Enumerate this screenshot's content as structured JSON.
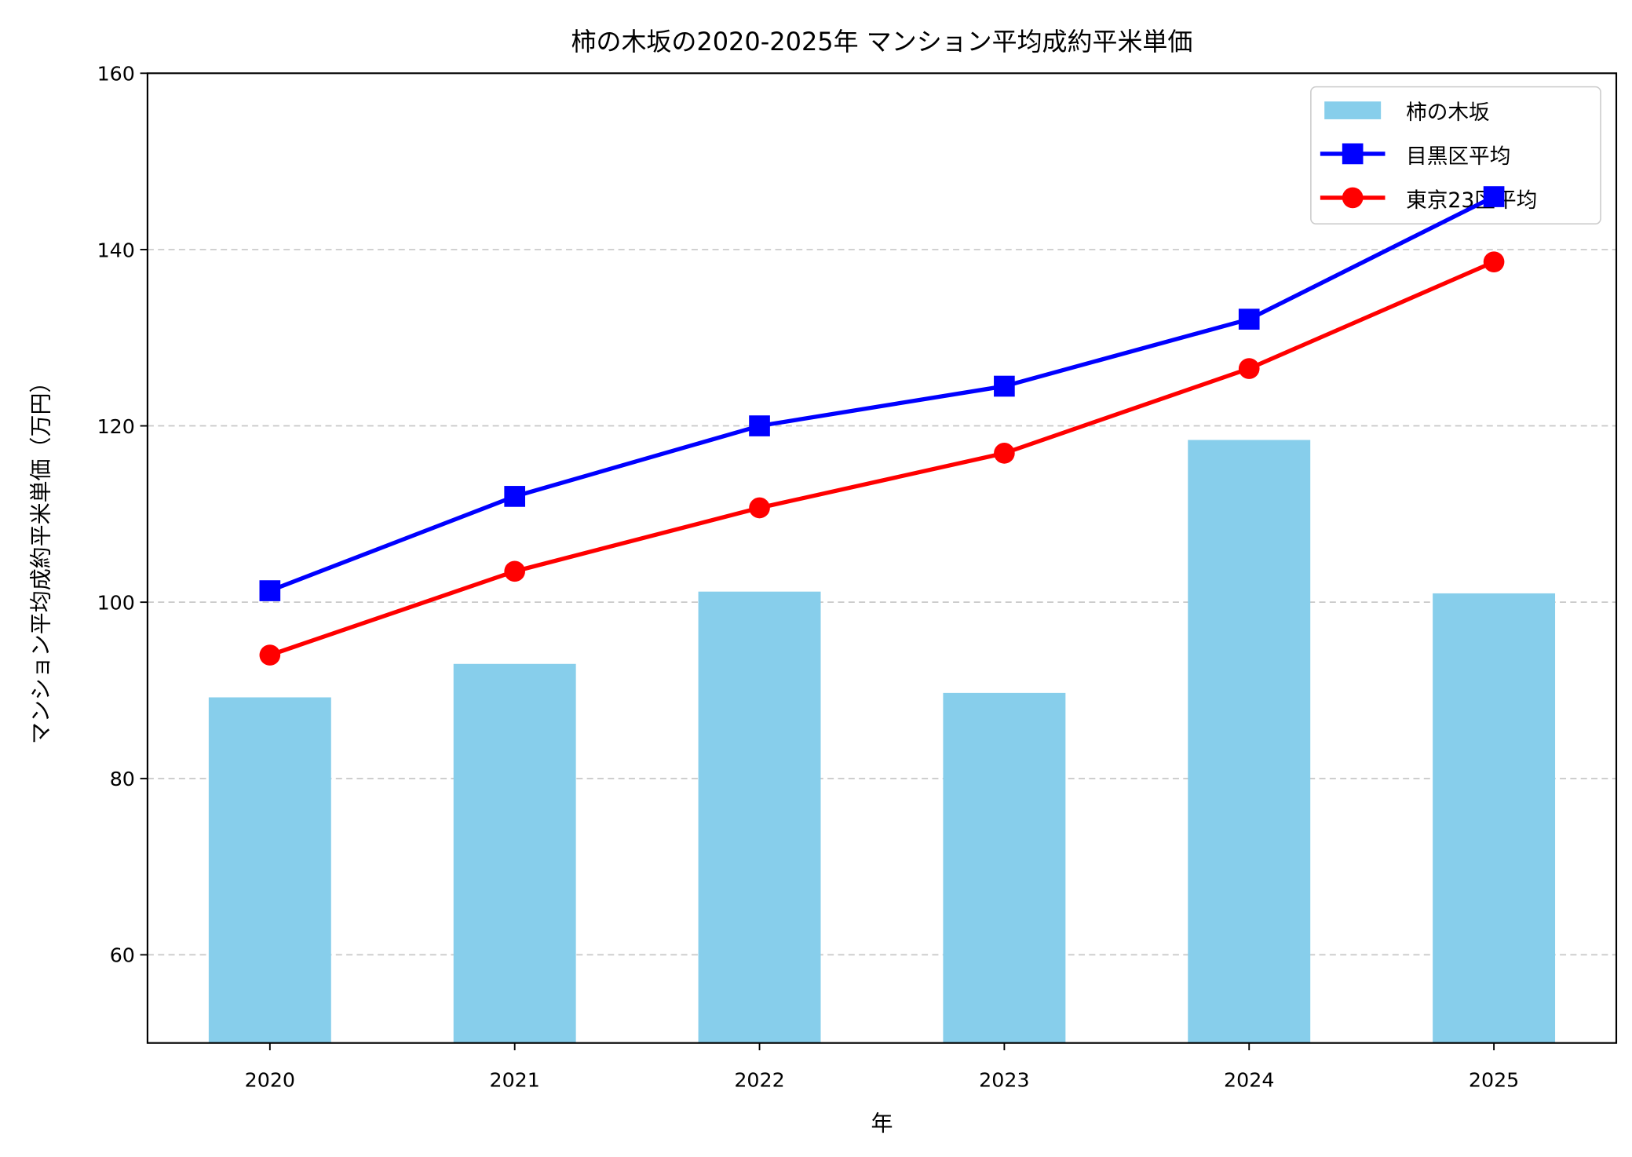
{
  "chart_data": {
    "type": "bar+line",
    "title": "柿の木坂の2020-2025年 マンション平均成約平米単価",
    "xlabel": "年",
    "ylabel": "マンション平均成約平米単価（万円）",
    "categories": [
      "2020",
      "2021",
      "2022",
      "2023",
      "2024",
      "2025"
    ],
    "xlim": [
      2019.5,
      2025.5
    ],
    "ylim": [
      50,
      160
    ],
    "yticks": [
      "60",
      "80",
      "100",
      "120",
      "140",
      "160"
    ],
    "grid": "y-dashed",
    "legend_position": "top-right",
    "series": [
      {
        "name": "柿の木坂",
        "kind": "bar",
        "color": "#87CEEB",
        "values": [
          89.2,
          93.0,
          101.2,
          89.7,
          118.4,
          101.0
        ]
      },
      {
        "name": "目黒区平均",
        "kind": "line",
        "marker": "square",
        "color": "#0000FF",
        "values": [
          101.3,
          112.0,
          120.0,
          124.5,
          132.1,
          146.0
        ]
      },
      {
        "name": "東京23区平均",
        "kind": "line",
        "marker": "circle",
        "color": "#FF0000",
        "values": [
          94.0,
          103.5,
          110.7,
          116.9,
          126.5,
          138.6
        ]
      }
    ]
  }
}
